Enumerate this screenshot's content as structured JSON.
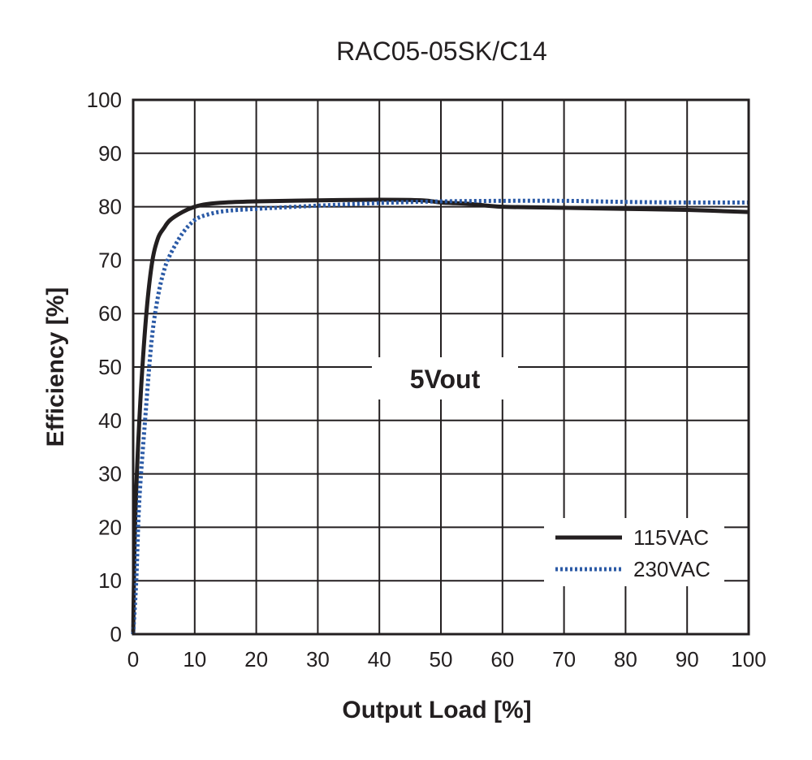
{
  "chart_data": {
    "type": "line",
    "title": "RAC05-05SK/C14",
    "xlabel": "Output Load [%]",
    "ylabel": "Efficiency [%]",
    "xlim": [
      0,
      100
    ],
    "ylim": [
      0,
      100
    ],
    "x_ticks": [
      0,
      10,
      20,
      30,
      40,
      50,
      60,
      70,
      80,
      90,
      100
    ],
    "y_ticks": [
      0,
      10,
      20,
      30,
      40,
      50,
      60,
      70,
      80,
      90,
      100
    ],
    "grid": true,
    "annotation": "5Vout",
    "legend_position": "bottom-right",
    "series": [
      {
        "name": "115VAC",
        "color": "#231f20",
        "style": "solid",
        "x": [
          0,
          0.3,
          1,
          2,
          3,
          4,
          5,
          6,
          8,
          10,
          12,
          15,
          20,
          30,
          40,
          47,
          50,
          55,
          60,
          70,
          80,
          90,
          100
        ],
        "y": [
          0,
          20,
          40,
          58,
          69,
          74,
          76,
          77.5,
          79,
          80,
          80.5,
          80.8,
          81,
          81.2,
          81.3,
          81.2,
          80.8,
          80.5,
          80,
          79.8,
          79.6,
          79.4,
          79
        ]
      },
      {
        "name": "230VAC",
        "color": "#2b5aa6",
        "style": "dotted",
        "x": [
          0,
          0.5,
          1,
          2,
          3,
          4,
          5,
          6,
          8,
          10,
          12,
          15,
          20,
          30,
          40,
          50,
          60,
          70,
          80,
          90,
          100
        ],
        "y": [
          0,
          10,
          25,
          41,
          55,
          63,
          68,
          71,
          75,
          77.5,
          78.5,
          79.2,
          79.6,
          80.2,
          80.7,
          81,
          81.1,
          81.1,
          80.9,
          80.8,
          80.8
        ]
      }
    ]
  }
}
